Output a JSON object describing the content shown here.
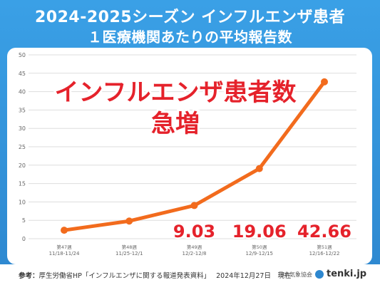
{
  "header": {
    "title": "2024-2025シーズン インフルエンザ患者",
    "subtitle": "１医療機関あたりの平均報告数"
  },
  "callout": {
    "line1": "インフルエンザ患者数",
    "line2": "急増"
  },
  "footer": {
    "source_prefix": "参考：",
    "source_text": "厚生労働省HP「インフルエンザに関する報道発表資料」",
    "as_of": "2024年12月27日　現在",
    "credit": "日本気象協会",
    "logo_text": "tenki.jp"
  },
  "colors": {
    "line": "#f26b1d",
    "label": "#e5222b",
    "grid": "#dddddd",
    "axis_text": "#666666"
  },
  "chart_data": {
    "type": "line",
    "title": "",
    "xlabel": "",
    "ylabel": "",
    "ylim": [
      0,
      50
    ],
    "yticks": [
      0,
      5,
      10,
      15,
      20,
      25,
      30,
      35,
      40,
      45,
      50
    ],
    "grid": true,
    "categories": [
      {
        "week": "第47週",
        "range": "11/18-11/24"
      },
      {
        "week": "第48週",
        "range": "11/25-12/1"
      },
      {
        "week": "第49週",
        "range": "12/2-12/8"
      },
      {
        "week": "第50週",
        "range": "12/9-12/15"
      },
      {
        "week": "第51週",
        "range": "12/16-12/22"
      }
    ],
    "series": [
      {
        "values": [
          2.3,
          4.8,
          9.03,
          19.06,
          42.66
        ]
      }
    ],
    "data_labels": [
      null,
      null,
      "9.03",
      "19.06",
      "42.66"
    ]
  }
}
